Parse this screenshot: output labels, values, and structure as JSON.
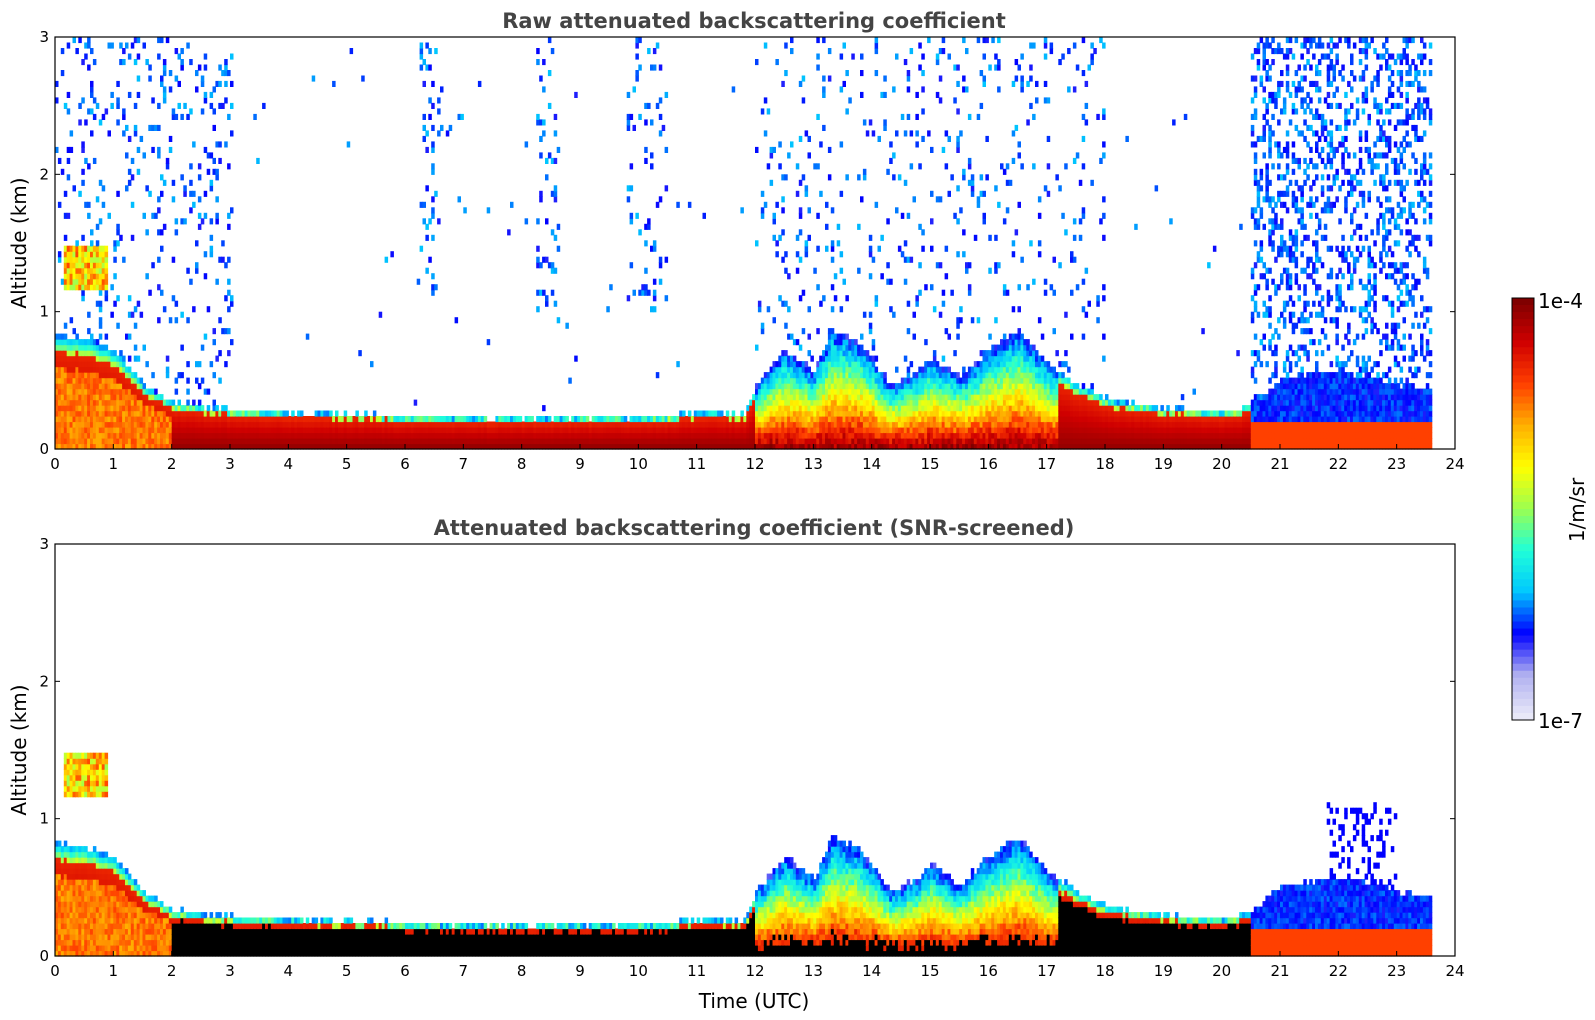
{
  "chart_data": [
    {
      "type": "heatmap",
      "title": "Raw attenuated backscattering coefficient",
      "xlabel": "",
      "ylabel": "Altitude (km)",
      "xlim": [
        0,
        24
      ],
      "ylim": [
        0,
        3
      ],
      "xticks": [
        "0",
        "1",
        "2",
        "3",
        "4",
        "5",
        "6",
        "7",
        "8",
        "9",
        "10",
        "11",
        "12",
        "13",
        "14",
        "15",
        "16",
        "17",
        "18",
        "19",
        "20",
        "21",
        "22",
        "23",
        "24"
      ],
      "yticks": [
        "0",
        "1",
        "2",
        "3"
      ],
      "screened": false,
      "layer_top_km": {
        "time_utc": [
          0,
          0.5,
          1,
          1.5,
          2,
          3,
          4,
          5,
          6,
          7,
          8,
          9,
          10,
          10.5,
          11,
          11.8,
          12,
          12.5,
          13,
          13.3,
          13.8,
          14.3,
          14.8,
          15,
          15.5,
          16,
          16.5,
          17,
          17.5,
          18,
          19,
          20,
          20.5,
          21,
          22,
          23,
          23.6
        ],
        "altitude_km": [
          0.8,
          0.78,
          0.7,
          0.45,
          0.32,
          0.27,
          0.25,
          0.24,
          0.22,
          0.21,
          0.21,
          0.21,
          0.21,
          0.22,
          0.25,
          0.24,
          0.45,
          0.7,
          0.55,
          0.85,
          0.75,
          0.45,
          0.55,
          0.65,
          0.5,
          0.72,
          0.85,
          0.6,
          0.45,
          0.35,
          0.28,
          0.25,
          0.3,
          0.5,
          0.55,
          0.45,
          0.4
        ]
      }
    },
    {
      "type": "heatmap",
      "title": "Attenuated backscattering coefficient (SNR-screened)",
      "xlabel": "Time (UTC)",
      "ylabel": "Altitude (km)",
      "xlim": [
        0,
        24
      ],
      "ylim": [
        0,
        3
      ],
      "xticks": [
        "0",
        "1",
        "2",
        "3",
        "4",
        "5",
        "6",
        "7",
        "8",
        "9",
        "10",
        "11",
        "12",
        "13",
        "14",
        "15",
        "16",
        "17",
        "18",
        "19",
        "20",
        "21",
        "22",
        "23",
        "24"
      ],
      "yticks": [
        "0",
        "1",
        "2",
        "3"
      ],
      "screened": true
    }
  ],
  "colorbar": {
    "label": "1/m/sr",
    "max_label": "1e-4",
    "min_label": "1e-7",
    "scale": "log",
    "range": [
      1e-07,
      0.0001
    ],
    "colormap": [
      "#e8e8f8",
      "#b0b0f0",
      "#0000ff",
      "#00c8ff",
      "#20ffd8",
      "#9cff50",
      "#ffff00",
      "#ffb000",
      "#ff4000",
      "#d00000",
      "#800000"
    ]
  }
}
